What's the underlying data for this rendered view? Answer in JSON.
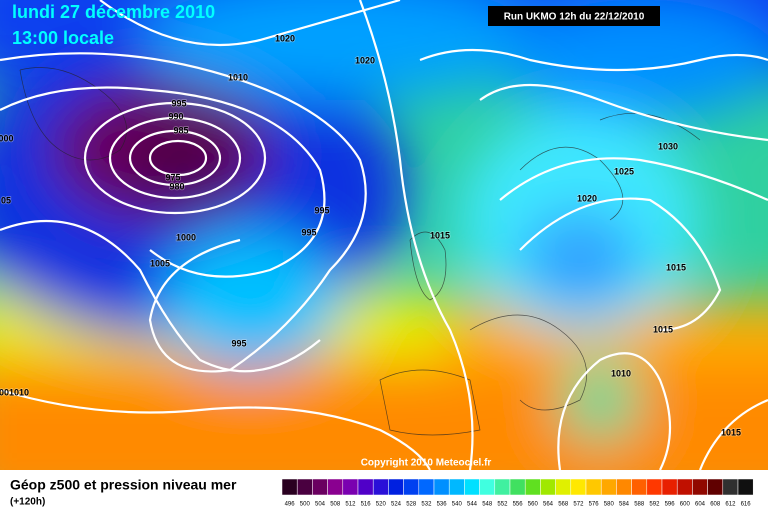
{
  "header": {
    "date": "lundi 27 décembre 2010",
    "time": "13:00 locale",
    "run": "Run UKMO 12h du 22/12/2010"
  },
  "map": {
    "copyright": "Copyright 2010 Meteociel.fr",
    "isobar_labels": [
      "1020",
      "1020",
      "1010",
      "995",
      "990",
      "985",
      "975",
      "980",
      "1000",
      "995",
      "995",
      "1005",
      "995",
      "000",
      "05",
      "1015",
      "1030",
      "1025",
      "1020",
      "1015",
      "1015",
      "1010",
      "1015",
      "001010"
    ]
  },
  "legend": {
    "title": "Géop z500 et pression niveau mer",
    "subtitle": "(+120h)",
    "labels": [
      "496",
      "500",
      "504",
      "508",
      "512",
      "516",
      "520",
      "524",
      "528",
      "532",
      "536",
      "540",
      "544",
      "548",
      "552",
      "556",
      "560",
      "564",
      "568",
      "572",
      "576",
      "580",
      "584",
      "588",
      "592",
      "596",
      "600",
      "604",
      "608",
      "612",
      "616"
    ],
    "colors": [
      "#2a0020",
      "#4a0040",
      "#6a0060",
      "#8a0090",
      "#7a00b0",
      "#5000c8",
      "#2a10d8",
      "#0020e0",
      "#0040f0",
      "#0068ff",
      "#0090ff",
      "#00b8ff",
      "#00e0ff",
      "#40ffe0",
      "#40f0a0",
      "#40e060",
      "#60e020",
      "#a0e800",
      "#e0f000",
      "#ffe800",
      "#ffc800",
      "#ffa800",
      "#ff8800",
      "#ff6000",
      "#ff3800",
      "#e82000",
      "#c01000",
      "#900800",
      "#600000",
      "#303030",
      "#101010"
    ]
  }
}
